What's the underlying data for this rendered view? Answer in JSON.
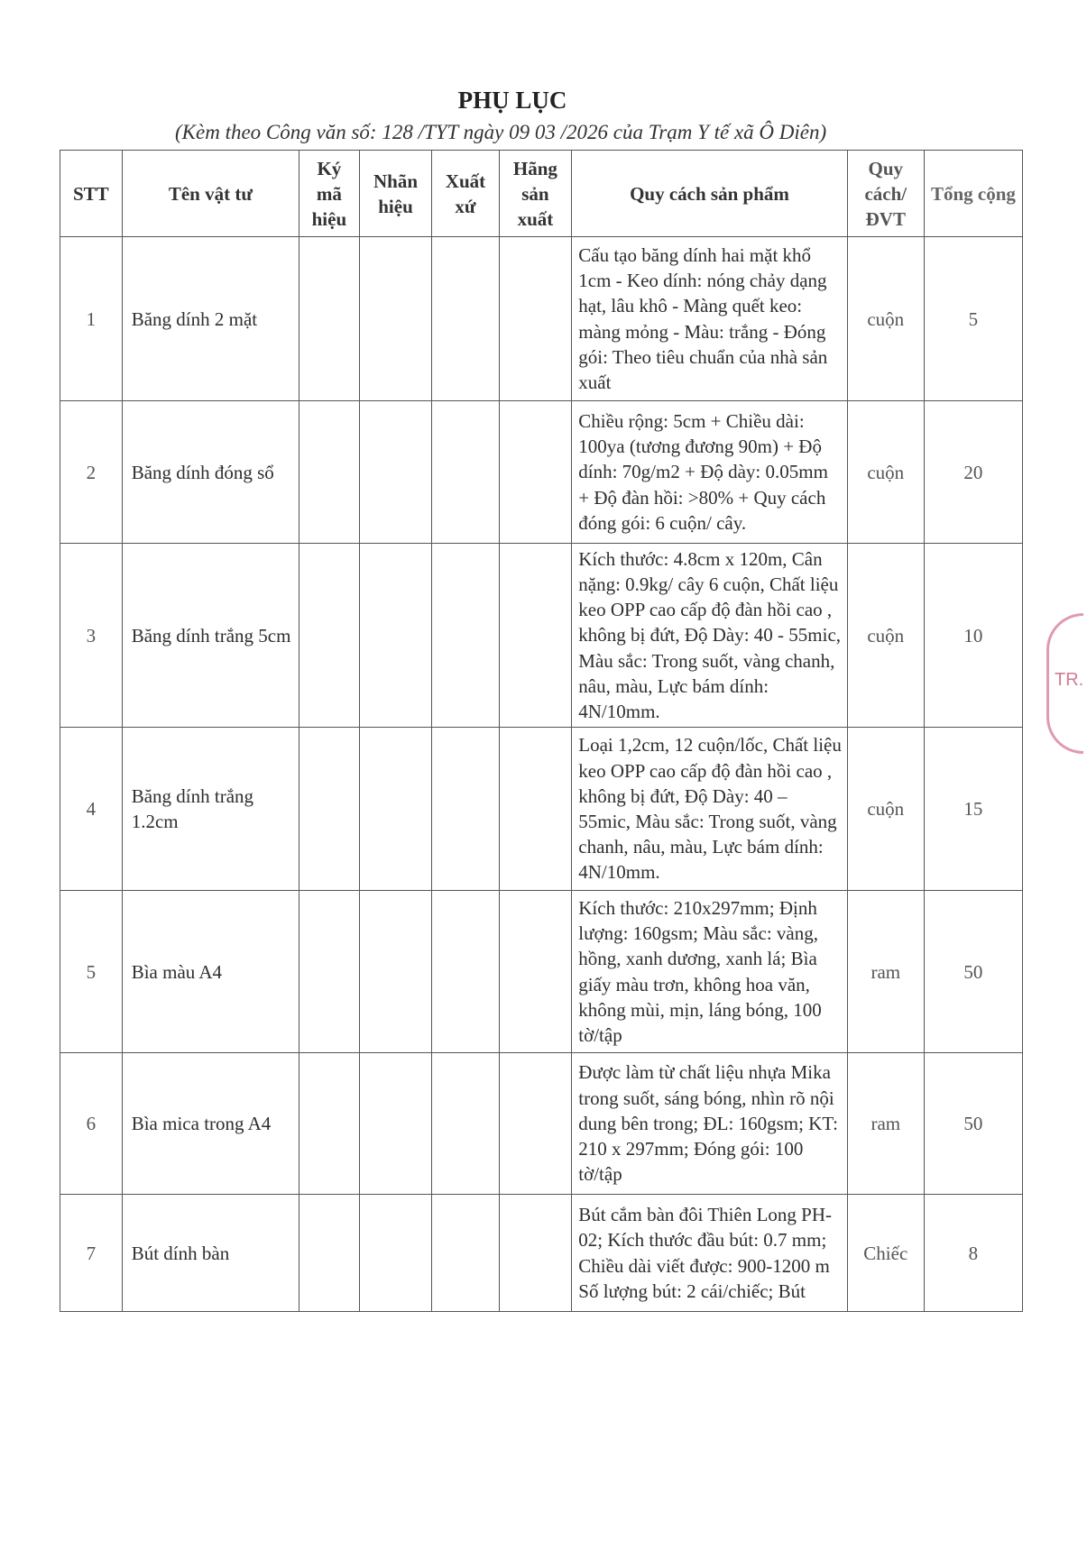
{
  "document": {
    "title": "PHỤ LỤC",
    "subtitle": "(Kèm theo Công văn số: 128 /TYT ngày 09 03 /2026 của Trạm Y tế xã Ô Diên)"
  },
  "table": {
    "headers": [
      "STT",
      "Tên vật tư",
      "Ký mã hiệu",
      "Nhãn hiệu",
      "Xuất xứ",
      "Hãng sản xuất",
      "Quy cách sản phẩm",
      "Quy cách/ ĐVT",
      "Tổng cộng"
    ],
    "rows": [
      {
        "stt": "1",
        "name": "Băng dính 2 mặt",
        "ky_ma_hieu": "",
        "nhan_hieu": "",
        "xuat_xu": "",
        "hang_san_xuat": "",
        "spec": "Cấu tạo băng dính hai mặt khổ 1cm - Keo dính: nóng chảy dạng hạt, lâu khô - Màng quết keo: màng mỏng - Màu: trắng - Đóng gói: Theo tiêu chuẩn của nhà sản xuất",
        "unit": "cuộn",
        "total": "5"
      },
      {
        "stt": "2",
        "name": "Băng dính đóng sổ",
        "ky_ma_hieu": "",
        "nhan_hieu": "",
        "xuat_xu": "",
        "hang_san_xuat": "",
        "spec": "Chiều rộng: 5cm + Chiều dài: 100ya (tương đương 90m) + Độ dính: 70g/m2 + Độ dày: 0.05mm + Độ đàn hồi: >80% + Quy cách đóng gói: 6 cuộn/ cây.",
        "unit": "cuộn",
        "total": "20"
      },
      {
        "stt": "3",
        "name": "Băng dính trắng 5cm",
        "ky_ma_hieu": "",
        "nhan_hieu": "",
        "xuat_xu": "",
        "hang_san_xuat": "",
        "spec": "Kích thước: 4.8cm x 120m, Cân nặng: 0.9kg/ cây 6 cuộn, Chất liệu keo OPP cao cấp độ đàn hồi cao , không bị đứt, Độ Dày: 40 - 55mic, Màu sắc: Trong suốt, vàng chanh, nâu, màu, Lực bám dính: 4N/10mm.",
        "unit": "cuộn",
        "total": "10"
      },
      {
        "stt": "4",
        "name": "Băng dính trắng 1.2cm",
        "ky_ma_hieu": "",
        "nhan_hieu": "",
        "xuat_xu": "",
        "hang_san_xuat": "",
        "spec": "Loại 1,2cm, 12 cuộn/lốc, Chất liệu keo OPP cao cấp độ đàn hồi cao , không bị đứt, Độ Dày: 40 – 55mic, Màu sắc: Trong suốt, vàng chanh, nâu, màu, Lực bám dính: 4N/10mm.",
        "unit": "cuộn",
        "total": "15"
      },
      {
        "stt": "5",
        "name": "Bìa màu A4",
        "ky_ma_hieu": "",
        "nhan_hieu": "",
        "xuat_xu": "",
        "hang_san_xuat": "",
        "spec": "Kích thước: 210x297mm; Định lượng: 160gsm; Màu sắc: vàng, hồng, xanh dương, xanh lá; Bìa giấy màu trơn, không hoa văn, không mùi, mịn, láng bóng, 100 tờ/tập",
        "unit": "ram",
        "total": "50"
      },
      {
        "stt": "6",
        "name": "Bìa mica trong A4",
        "ky_ma_hieu": "",
        "nhan_hieu": "",
        "xuat_xu": "",
        "hang_san_xuat": "",
        "spec": "Được làm từ chất liệu nhựa Mika trong suốt, sáng bóng, nhìn rõ nội dung bên trong; ĐL: 160gsm; KT: 210 x 297mm; Đóng gói: 100 tờ/tập",
        "unit": "ram",
        "total": "50"
      },
      {
        "stt": "7",
        "name": "Bút dính bàn",
        "ky_ma_hieu": "",
        "nhan_hieu": "",
        "xuat_xu": "",
        "hang_san_xuat": "",
        "spec": "Bút cắm bàn đôi Thiên Long PH-02; Kích thước đầu bút: 0.7 mm; Chiều dài viết được: 900-1200 m Số lượng bút: 2 cái/chiếc; Bút",
        "unit": "Chiếc",
        "total": "8"
      }
    ]
  },
  "stamp": {
    "text": "TR."
  },
  "colors": {
    "stamp": "#d47a93",
    "border": "#555555"
  }
}
